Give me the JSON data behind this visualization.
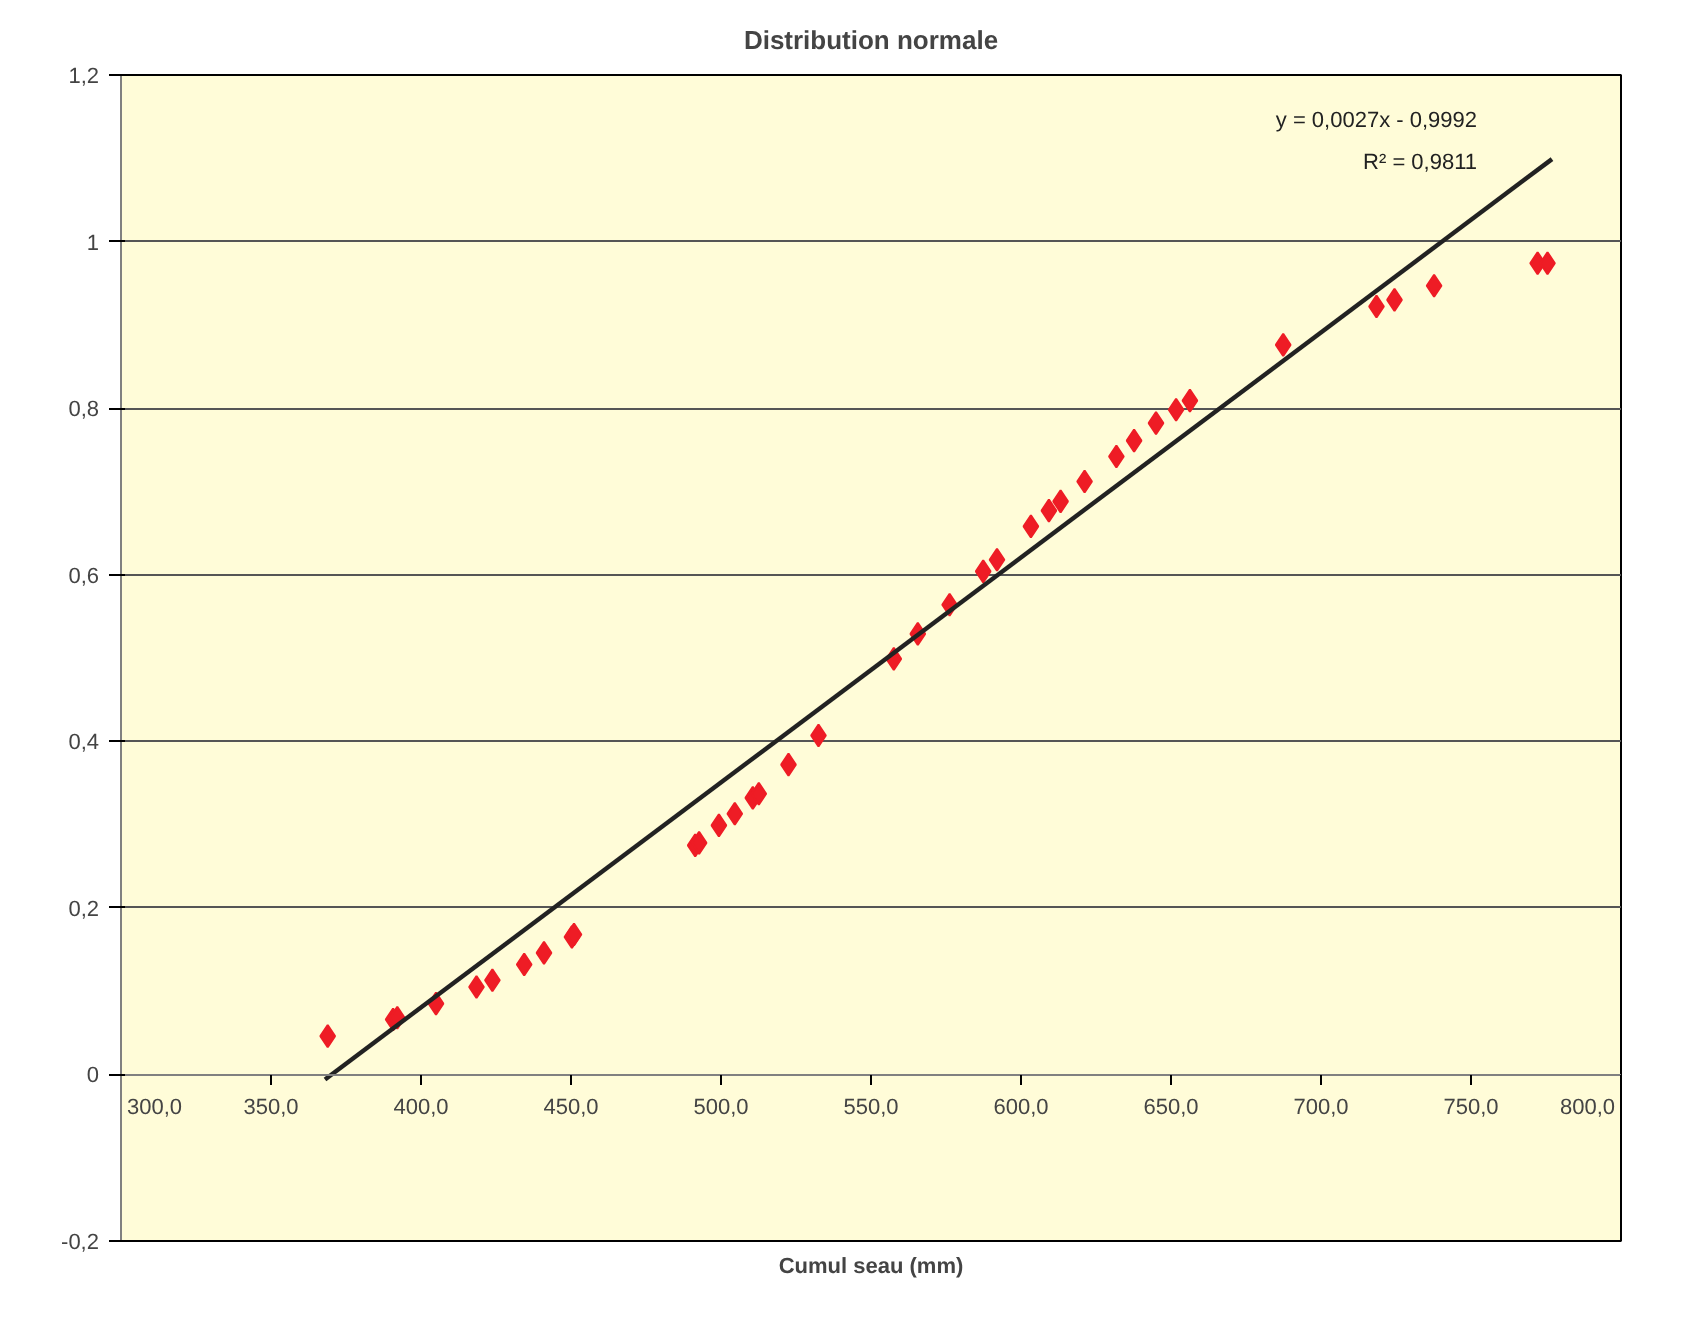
{
  "chart_data": {
    "type": "scatter",
    "title": "Distribution normale",
    "xlabel": "Cumul seau (mm)",
    "annotations": [
      "y = 0,0027x - 0,9992",
      "R² = 0,9811"
    ],
    "xlim": [
      300,
      800
    ],
    "ylim": [
      -0.2,
      1.2
    ],
    "xticks": [
      {
        "value": 300,
        "label": "300,0"
      },
      {
        "value": 350,
        "label": "350,0"
      },
      {
        "value": 400,
        "label": "400,0"
      },
      {
        "value": 450,
        "label": "450,0"
      },
      {
        "value": 500,
        "label": "500,0"
      },
      {
        "value": 550,
        "label": "550,0"
      },
      {
        "value": 600,
        "label": "600,0"
      },
      {
        "value": 650,
        "label": "650,0"
      },
      {
        "value": 700,
        "label": "700,0"
      },
      {
        "value": 750,
        "label": "750,0"
      },
      {
        "value": 800,
        "label": "800,0"
      }
    ],
    "yticks": [
      {
        "value": -0.2,
        "label": "-0,2"
      },
      0,
      {
        "value": 0.2,
        "label": "0,2"
      },
      {
        "value": 0.4,
        "label": "0,4"
      },
      {
        "value": 0.6,
        "label": "0,6"
      },
      {
        "value": 0.8,
        "label": "0,8"
      },
      1,
      {
        "value": 1.2,
        "label": "1,2"
      }
    ],
    "grid": "y",
    "marker": "diamond",
    "series": [
      {
        "color": "#ee1c25",
        "x": [
          368.9,
          390.7,
          392.1,
          405,
          418.5,
          423.8,
          434.4,
          441,
          450.3,
          451,
          491.4,
          492.7,
          499.3,
          504.6,
          510.6,
          512.6,
          522.5,
          532.5,
          557.6,
          565.6,
          576.2,
          587.4,
          592,
          603.3,
          609.3,
          613.2,
          621.2,
          631.8,
          637.7,
          645,
          651.7,
          656.3,
          687.4,
          718.5,
          724.5,
          737.7,
          772.2,
          775.5
        ],
        "values": [
          0.046,
          0.066,
          0.068,
          0.085,
          0.105,
          0.113,
          0.132,
          0.146,
          0.165,
          0.168,
          0.275,
          0.278,
          0.299,
          0.313,
          0.332,
          0.337,
          0.372,
          0.407,
          0.499,
          0.529,
          0.564,
          0.604,
          0.618,
          0.658,
          0.677,
          0.688,
          0.712,
          0.742,
          0.761,
          0.782,
          0.798,
          0.809,
          0.876,
          0.922,
          0.93,
          0.947,
          0.974,
          0.974
        ]
      },
      {
        "type": "line",
        "color": "#222222",
        "marker": "none",
        "x": [
          368,
          777
        ],
        "values": [
          -0.006,
          1.099
        ]
      }
    ]
  }
}
